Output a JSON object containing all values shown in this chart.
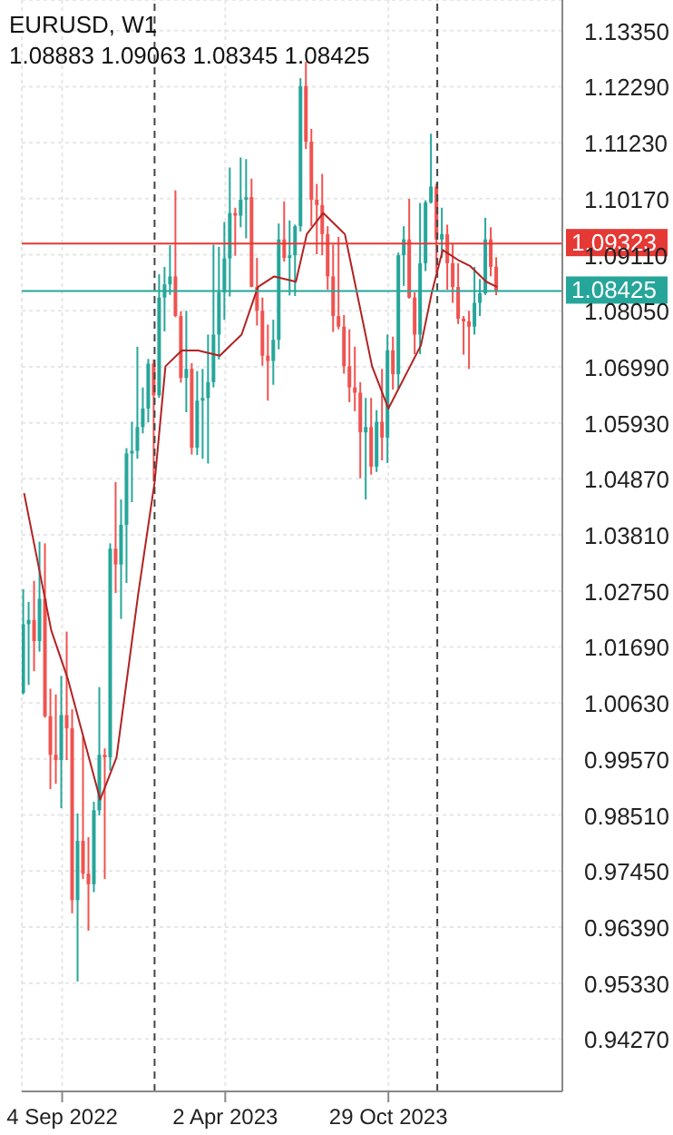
{
  "chart_data": {
    "type": "candlestick",
    "title": "EURUSD, W1",
    "subtitle": "1.08883 1.09063 1.08345 1.08425",
    "x": [
      "2022-07-17",
      "2022-07-24",
      "2022-07-31",
      "2022-08-07",
      "2022-08-14",
      "2022-08-21",
      "2022-08-28",
      "2022-09-04",
      "2022-09-11",
      "2022-09-18",
      "2022-09-25",
      "2022-10-02",
      "2022-10-09",
      "2022-10-16",
      "2022-10-23",
      "2022-10-30",
      "2022-11-06",
      "2022-11-13",
      "2022-11-20",
      "2022-11-27",
      "2022-12-04",
      "2022-12-11",
      "2022-12-18",
      "2022-12-25",
      "2023-01-01",
      "2023-01-08",
      "2023-01-15",
      "2023-01-22",
      "2023-01-29",
      "2023-02-05",
      "2023-02-12",
      "2023-02-19",
      "2023-02-26",
      "2023-03-05",
      "2023-03-12",
      "2023-03-19",
      "2023-03-26",
      "2023-04-02",
      "2023-04-09",
      "2023-04-16",
      "2023-04-23",
      "2023-04-30",
      "2023-05-07",
      "2023-05-14",
      "2023-05-21",
      "2023-05-28",
      "2023-06-04",
      "2023-06-11",
      "2023-06-18",
      "2023-06-25",
      "2023-07-02",
      "2023-07-09",
      "2023-07-16",
      "2023-07-23",
      "2023-07-30",
      "2023-08-06",
      "2023-08-13",
      "2023-08-20",
      "2023-08-27",
      "2023-09-03",
      "2023-09-10",
      "2023-09-17",
      "2023-09-24",
      "2023-10-01",
      "2023-10-08",
      "2023-10-15",
      "2023-10-22",
      "2023-10-29",
      "2023-11-05",
      "2023-11-12",
      "2023-11-19",
      "2023-11-26",
      "2023-12-03",
      "2023-12-10",
      "2023-12-17",
      "2023-12-24",
      "2023-12-31",
      "2024-01-07",
      "2024-01-14",
      "2024-01-21",
      "2024-01-28",
      "2024-02-04",
      "2024-02-11",
      "2024-02-18",
      "2024-02-25",
      "2024-03-03",
      "2024-03-10",
      "2024-03-17"
    ],
    "ohlc": [
      [
        1.0082,
        1.0278,
        1.0079,
        1.0212
      ],
      [
        1.0212,
        1.0254,
        1.0097,
        1.022
      ],
      [
        1.022,
        1.0294,
        1.0123,
        1.018
      ],
      [
        1.018,
        1.0368,
        1.016,
        1.026
      ],
      [
        1.026,
        1.0365,
        1.0035,
        1.0038
      ],
      [
        1.0038,
        1.009,
        0.99,
        0.9965
      ],
      [
        0.9965,
        1.0079,
        0.991,
        0.9955
      ],
      [
        0.9955,
        1.0114,
        0.9864,
        1.004
      ],
      [
        1.004,
        1.0198,
        0.9955,
        1.0015
      ],
      [
        1.0015,
        1.0051,
        0.9665,
        0.969
      ],
      [
        0.969,
        0.9854,
        0.9536,
        0.9802
      ],
      [
        0.9802,
        0.9999,
        0.973,
        0.974
      ],
      [
        0.974,
        0.9809,
        0.9632,
        0.972
      ],
      [
        0.972,
        0.9876,
        0.9705,
        0.986
      ],
      [
        0.986,
        1.0093,
        0.985,
        0.9965
      ],
      [
        0.9965,
        0.9977,
        0.973,
        0.996
      ],
      [
        0.996,
        1.0365,
        0.9935,
        1.0355
      ],
      [
        1.0355,
        1.0481,
        1.0271,
        1.0325
      ],
      [
        1.0325,
        1.0448,
        1.0222,
        1.04
      ],
      [
        1.04,
        1.0545,
        1.029,
        1.0535
      ],
      [
        1.0535,
        1.0595,
        1.0443,
        1.054
      ],
      [
        1.054,
        1.0737,
        1.0525,
        1.0585
      ],
      [
        1.0585,
        1.066,
        1.0573,
        1.062
      ],
      [
        1.062,
        1.0714,
        1.0594,
        1.0705
      ],
      [
        1.0705,
        1.0713,
        1.0482,
        1.0645
      ],
      [
        1.0645,
        1.0874,
        1.064,
        1.083
      ],
      [
        1.083,
        1.0888,
        1.0766,
        1.0855
      ],
      [
        1.0855,
        1.0929,
        1.0835,
        1.087
      ],
      [
        1.087,
        1.1033,
        1.0793,
        1.0795
      ],
      [
        1.0795,
        1.0804,
        1.0669,
        1.0678
      ],
      [
        1.0678,
        1.0805,
        1.0613,
        1.0695
      ],
      [
        1.0695,
        1.0706,
        1.0533,
        1.0546
      ],
      [
        1.0546,
        1.0691,
        1.0532,
        1.0635
      ],
      [
        1.0635,
        1.0695,
        1.0525,
        1.064
      ],
      [
        1.064,
        1.076,
        1.0516,
        1.067
      ],
      [
        1.067,
        1.093,
        1.066,
        1.076
      ],
      [
        1.076,
        1.0926,
        1.0713,
        1.084
      ],
      [
        1.084,
        1.0973,
        1.0788,
        1.0904
      ],
      [
        1.0904,
        1.1076,
        1.0832,
        1.099
      ],
      [
        1.099,
        1.1,
        1.0909,
        1.0985
      ],
      [
        1.0985,
        1.1095,
        1.0963,
        1.1015
      ],
      [
        1.1015,
        1.1092,
        1.0942,
        1.102
      ],
      [
        1.102,
        1.1055,
        1.085,
        1.085
      ],
      [
        1.085,
        1.0905,
        1.0777,
        1.0805
      ],
      [
        1.0805,
        1.083,
        1.0701,
        1.072
      ],
      [
        1.072,
        1.0779,
        1.0635,
        1.071
      ],
      [
        1.071,
        1.0788,
        1.0665,
        1.075
      ],
      [
        1.075,
        1.097,
        1.0732,
        1.094
      ],
      [
        1.094,
        1.1012,
        1.0898,
        1.0905
      ],
      [
        1.0905,
        1.0976,
        1.0834,
        1.091
      ],
      [
        1.091,
        1.0968,
        1.0833,
        1.0965
      ],
      [
        1.0965,
        1.1245,
        1.0955,
        1.123
      ],
      [
        1.123,
        1.1276,
        1.1111,
        1.1125
      ],
      [
        1.1125,
        1.1149,
        1.0965,
        1.1015
      ],
      [
        1.1015,
        1.1045,
        1.0912,
        1.1005
      ],
      [
        1.1005,
        1.1064,
        1.091,
        1.095
      ],
      [
        1.095,
        1.0965,
        1.0845,
        1.087
      ],
      [
        1.087,
        1.093,
        1.0765,
        1.0795
      ],
      [
        1.0795,
        1.0945,
        1.077,
        1.0775
      ],
      [
        1.0775,
        1.0797,
        1.0686,
        1.07
      ],
      [
        1.07,
        1.077,
        1.0632,
        1.066
      ],
      [
        1.066,
        1.0737,
        1.0615,
        1.065
      ],
      [
        1.065,
        1.067,
        1.0488,
        1.0575
      ],
      [
        1.0575,
        1.064,
        1.0448,
        1.0585
      ],
      [
        1.0585,
        1.064,
        1.0495,
        1.051
      ],
      [
        1.051,
        1.0617,
        1.05,
        1.0595
      ],
      [
        1.0595,
        1.0695,
        1.0522,
        1.0565
      ],
      [
        1.0565,
        1.076,
        1.0517,
        1.073
      ],
      [
        1.073,
        1.0756,
        1.0656,
        1.0685
      ],
      [
        1.0685,
        1.0915,
        1.0657,
        1.091
      ],
      [
        1.091,
        1.0965,
        1.0852,
        1.094
      ],
      [
        1.094,
        1.1017,
        1.0828,
        1.083
      ],
      [
        1.083,
        1.084,
        1.0723,
        1.076
      ],
      [
        1.076,
        1.1009,
        1.0723,
        1.0895
      ],
      [
        1.0895,
        1.1014,
        1.088,
        1.101
      ],
      [
        1.101,
        1.114,
        1.1008,
        1.104
      ],
      [
        1.104,
        1.1046,
        1.0877,
        1.094
      ],
      [
        1.094,
        1.1,
        1.0905,
        1.095
      ],
      [
        1.095,
        1.0968,
        1.0845,
        1.0895
      ],
      [
        1.0895,
        1.0932,
        1.082,
        1.085
      ],
      [
        1.085,
        1.0895,
        1.078,
        1.079
      ],
      [
        1.079,
        1.0795,
        1.0722,
        1.0785
      ],
      [
        1.0785,
        1.0805,
        1.0695,
        1.0775
      ],
      [
        1.0775,
        1.0888,
        1.076,
        1.082
      ],
      [
        1.082,
        1.0865,
        1.0795,
        1.0838
      ],
      [
        1.0838,
        1.0981,
        1.0835,
        1.094
      ],
      [
        1.094,
        1.0963,
        1.087,
        1.0888
      ],
      [
        1.08883,
        1.09063,
        1.08345,
        1.08425
      ]
    ],
    "colors": [
      "#26a69a",
      "#26a69a",
      "#ef5350",
      "#26a69a",
      "#ef5350",
      "#ef5350",
      "#ef5350",
      "#26a69a",
      "#ef5350",
      "#ef5350",
      "#26a69a",
      "#ef5350",
      "#ef5350",
      "#26a69a",
      "#26a69a",
      "#ef5350",
      "#26a69a",
      "#ef5350",
      "#26a69a",
      "#26a69a",
      "#26a69a",
      "#26a69a",
      "#26a69a",
      "#26a69a",
      "#ef5350",
      "#26a69a",
      "#26a69a",
      "#26a69a",
      "#ef5350",
      "#ef5350",
      "#26a69a",
      "#ef5350",
      "#26a69a",
      "#26a69a",
      "#26a69a",
      "#26a69a",
      "#26a69a",
      "#26a69a",
      "#26a69a",
      "#ef5350",
      "#26a69a",
      "#26a69a",
      "#ef5350",
      "#ef5350",
      "#ef5350",
      "#ef5350",
      "#26a69a",
      "#26a69a",
      "#ef5350",
      "#26a69a",
      "#26a69a",
      "#26a69a",
      "#ef5350",
      "#ef5350",
      "#ef5350",
      "#ef5350",
      "#ef5350",
      "#ef5350",
      "#ef5350",
      "#ef5350",
      "#ef5350",
      "#ef5350",
      "#ef5350",
      "#26a69a",
      "#ef5350",
      "#26a69a",
      "#ef5350",
      "#26a69a",
      "#ef5350",
      "#26a69a",
      "#26a69a",
      "#ef5350",
      "#ef5350",
      "#26a69a",
      "#26a69a",
      "#26a69a",
      "#ef5350",
      "#26a69a",
      "#ef5350",
      "#ef5350",
      "#ef5350",
      "#ef5350",
      "#ef5350",
      "#26a69a",
      "#26a69a",
      "#26a69a",
      "#ef5350",
      "#ef5350"
    ],
    "series": [
      {
        "type": "line",
        "color": "#b22222",
        "x": [
          "2022-07-17",
          "2022-08-21",
          "2022-09-11",
          "2022-10-23",
          "2022-11-13",
          "2022-12-11",
          "2023-01-01",
          "2023-01-15",
          "2023-02-05",
          "2023-02-26",
          "2023-03-26",
          "2023-04-23",
          "2023-05-14",
          "2023-06-04",
          "2023-07-02",
          "2023-07-16",
          "2023-08-06",
          "2023-09-03",
          "2023-09-10",
          "2023-10-08",
          "2023-10-29",
          "2023-12-10",
          "2023-12-24",
          "2024-01-07",
          "2024-01-28",
          "2024-02-11",
          "2024-03-03",
          "2024-03-17"
        ],
        "values": [
          1.046,
          1.02,
          1.011,
          0.988,
          0.996,
          1.027,
          1.048,
          1.07,
          1.073,
          1.073,
          1.072,
          1.076,
          1.085,
          1.087,
          1.086,
          1.095,
          1.099,
          1.095,
          1.09,
          1.07,
          1.062,
          1.074,
          1.084,
          1.092,
          1.09,
          1.089,
          1.086,
          1.085
        ]
      }
    ],
    "xlim": [
      "2022-07-14",
      "2024-06-09"
    ],
    "xticks": [
      {
        "value": "2022-09-04",
        "label": "4 Sep 2022"
      },
      {
        "value": "2023-04-02",
        "label": "2 Apr 2023"
      },
      {
        "value": "2023-10-29",
        "label": "29 Oct 2023"
      }
    ],
    "ylim": [
      0.9328,
      1.1393
    ],
    "yticks": [
      {
        "value": 0.9427,
        "label": "0.94270"
      },
      {
        "value": 0.9533,
        "label": "0.95330"
      },
      {
        "value": 0.9639,
        "label": "0.96390"
      },
      {
        "value": 0.9745,
        "label": "0.97450"
      },
      {
        "value": 0.9851,
        "label": "0.98510"
      },
      {
        "value": 0.9957,
        "label": "0.99570"
      },
      {
        "value": 1.0063,
        "label": "1.00630"
      },
      {
        "value": 1.0169,
        "label": "1.01690"
      },
      {
        "value": 1.0275,
        "label": "1.02750"
      },
      {
        "value": 1.0381,
        "label": "1.03810"
      },
      {
        "value": 1.0487,
        "label": "1.04870"
      },
      {
        "value": 1.0593,
        "label": "1.05930"
      },
      {
        "value": 1.0699,
        "label": "1.06990"
      },
      {
        "value": 1.0805,
        "label": "1.08050"
      },
      {
        "value": 1.0911,
        "label": "1.09110"
      },
      {
        "value": 1.1017,
        "label": "1.10170"
      },
      {
        "value": 1.1123,
        "label": "1.11230"
      },
      {
        "value": 1.1229,
        "label": "1.12290"
      },
      {
        "value": 1.1335,
        "label": "1.13350"
      }
    ],
    "ref_lines": [
      {
        "axis": "y",
        "value": 1.09323,
        "label": "1.09323",
        "color": "#e53935"
      },
      {
        "axis": "y",
        "value": 1.08425,
        "label": "1.08425",
        "color": "#26a69a"
      },
      {
        "axis": "x",
        "value": "2023-01-01",
        "label": null,
        "color": "#444444",
        "line_style": "dashed"
      },
      {
        "axis": "x",
        "value": "2023-12-31",
        "label": null,
        "color": "#444444",
        "line_style": "dashed"
      }
    ],
    "grid": true
  }
}
